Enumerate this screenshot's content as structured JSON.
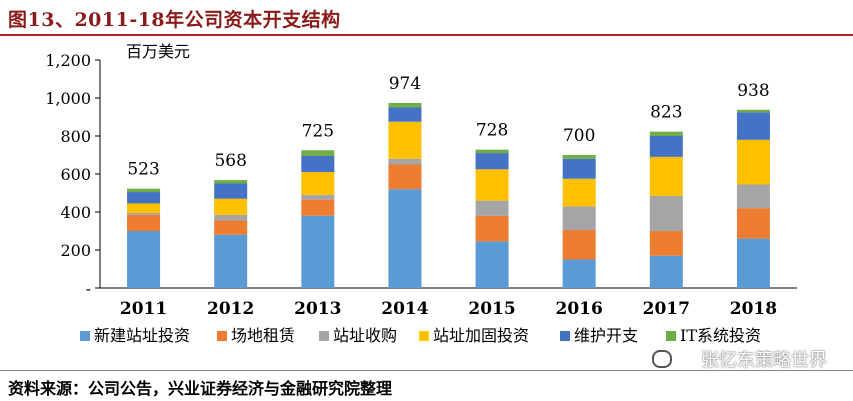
{
  "header": {
    "title": "图13、2011-18年公司资本开支结构"
  },
  "footer": {
    "source": "资料来源：公司公告，兴业证券经济与金融研究院整理",
    "watermark": "张忆东策略世界"
  },
  "chart_data": {
    "type": "bar",
    "stacked": true,
    "ylabel": "百万美元",
    "ylim": [
      0,
      1200
    ],
    "yticks": [
      "-",
      "200",
      "400",
      "600",
      "800",
      "1,000",
      "1,200"
    ],
    "categories": [
      "2011",
      "2012",
      "2013",
      "2014",
      "2015",
      "2016",
      "2017",
      "2018"
    ],
    "totals": [
      "523",
      "568",
      "725",
      "974",
      "728",
      "700",
      "823",
      "938"
    ],
    "legend_position": "bottom",
    "series": [
      {
        "name": "新建站址投资",
        "color": "#5b9bd5",
        "values": [
          300,
          280,
          380,
          520,
          245,
          150,
          170,
          260
        ]
      },
      {
        "name": "场地租赁",
        "color": "#ed7d31",
        "values": [
          85,
          75,
          85,
          130,
          135,
          155,
          130,
          160
        ]
      },
      {
        "name": "站址收购",
        "color": "#a5a5a5",
        "values": [
          10,
          30,
          25,
          30,
          80,
          125,
          185,
          125
        ]
      },
      {
        "name": "站址加固投资",
        "color": "#ffc000",
        "values": [
          50,
          85,
          120,
          195,
          165,
          145,
          205,
          235
        ]
      },
      {
        "name": "维护开支",
        "color": "#4472c4",
        "values": [
          60,
          80,
          85,
          75,
          85,
          105,
          110,
          145
        ]
      },
      {
        "name": "IT系统投资",
        "color": "#70ad47",
        "values": [
          18,
          18,
          30,
          24,
          18,
          20,
          23,
          13
        ]
      }
    ]
  }
}
